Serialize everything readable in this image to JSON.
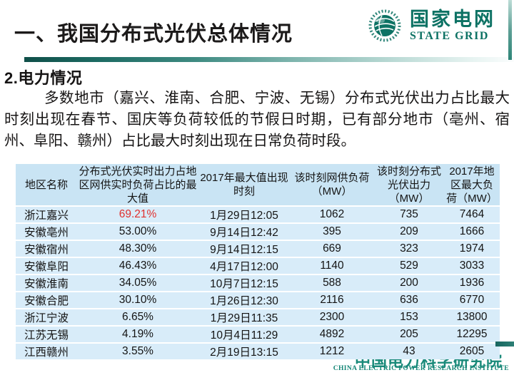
{
  "slide": {
    "title": "一、我国分布式光伏总体情况",
    "section_heading": "2.电力情况",
    "paragraph": "多数地市（嘉兴、淮南、合肥、宁波、无锡）分布式光伏出力占比最大时刻出现在春节、国庆等负荷较低的节假日时期，已有部分地市（亳州、宿州、阜阳、赣州）占比最大时刻出现在日常负荷时段。"
  },
  "logo": {
    "name_cn": "国家电网",
    "name_en": "STATE GRID"
  },
  "footer": {
    "org_cn": "中国电力科学研究院",
    "org_en": "CHINA ELECTRIC POWER RESEARCH INSTITUTE"
  },
  "colors": {
    "brand_teal": "#0d7264",
    "table_header_bg": "#c9e4f4",
    "table_row_bg": "#d8ecf9",
    "highlight_red": "#e0302e",
    "text": "#141414"
  },
  "chart_data": {
    "type": "table",
    "headers": [
      "地区名称",
      "分布式光伏实时出力占地区网供实时负荷占比的最大值",
      "2017年最大值出现时刻",
      "该时刻网供负荷（MW）",
      "该时刻分布式光伏出力（MW）",
      "2017年地区最大负荷（MW）"
    ],
    "rows": [
      [
        "浙江嘉兴",
        "69.21%",
        "1月29日12:05",
        "1062",
        "735",
        "7464"
      ],
      [
        "安徽亳州",
        "53.00%",
        "9月14日12:42",
        "395",
        "209",
        "1666"
      ],
      [
        "安徽宿州",
        "48.30%",
        "9月14日12:15",
        "669",
        "323",
        "1974"
      ],
      [
        "安徽阜阳",
        "46.43%",
        "4月17日12:00",
        "1140",
        "529",
        "3033"
      ],
      [
        "安徽淮南",
        "34.05%",
        "10月7日12:15",
        "588",
        "200",
        "1936"
      ],
      [
        "安徽合肥",
        "30.10%",
        "1月26日12:30",
        "2116",
        "636",
        "6770"
      ],
      [
        "浙江宁波",
        "6.65%",
        "1月29日11:35",
        "2300",
        "153",
        "13800"
      ],
      [
        "江苏无锡",
        "4.19%",
        "10月4日11:29",
        "4892",
        "205",
        "12295"
      ],
      [
        "江西赣州",
        "3.55%",
        "2月19日13:15",
        "1212",
        "43",
        "2605"
      ]
    ],
    "highlight_cell": {
      "row": 0,
      "col": 1,
      "color": "#e0302e"
    }
  }
}
